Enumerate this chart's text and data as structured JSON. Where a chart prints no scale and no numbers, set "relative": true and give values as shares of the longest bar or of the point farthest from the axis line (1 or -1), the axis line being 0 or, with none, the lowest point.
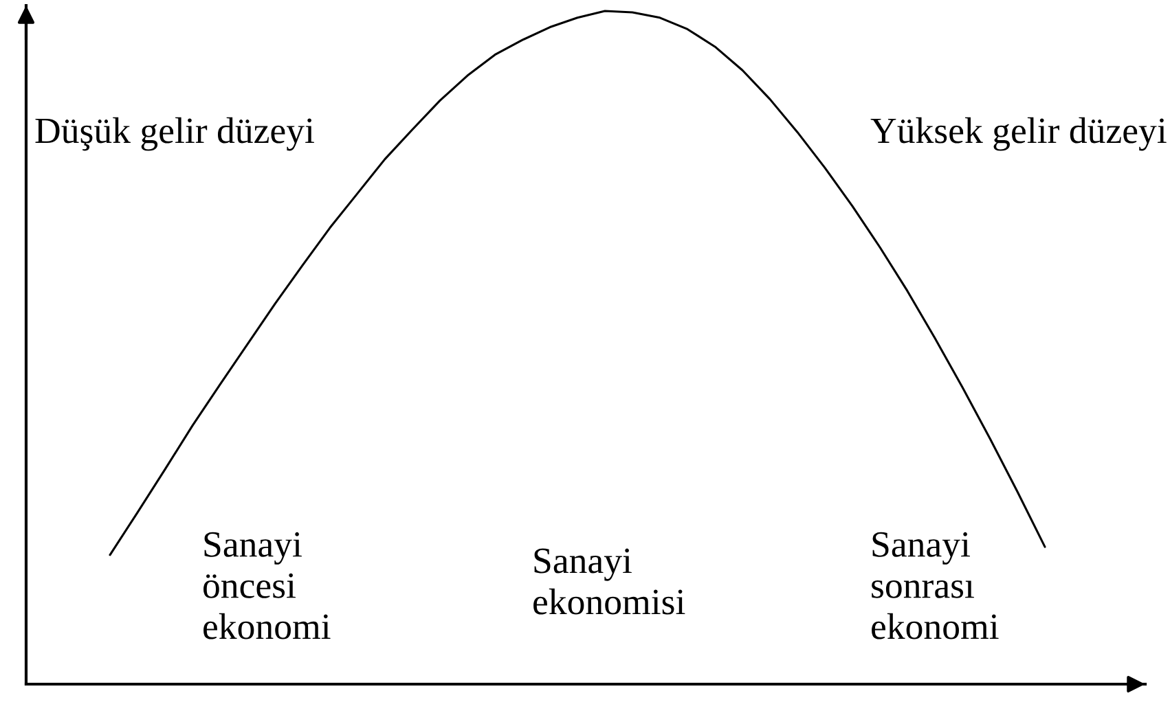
{
  "chart_data": {
    "type": "line",
    "relative": true,
    "categories": [
      null,
      null,
      null,
      null,
      null,
      null,
      null,
      null,
      null,
      null,
      null,
      null,
      null,
      null,
      null,
      null,
      null,
      null,
      null,
      null,
      null,
      null,
      null,
      null,
      null,
      null,
      null,
      null,
      null,
      null,
      null,
      null,
      null,
      null,
      null
    ],
    "series": [
      {
        "color": "#000000",
        "values": [
          0.192,
          0.255,
          0.319,
          0.384,
          0.445,
          0.505,
          0.565,
          0.622,
          0.678,
          0.729,
          0.78,
          0.824,
          0.867,
          0.904,
          0.935,
          0.957,
          0.976,
          0.99,
          1,
          0.998,
          0.99,
          0.973,
          0.947,
          0.912,
          0.869,
          0.82,
          0.767,
          0.71,
          0.649,
          0.584,
          0.514,
          0.441,
          0.365,
          0.286,
          0.204
        ]
      }
    ],
    "annotations": [
      "Düşük gelir düzeyi",
      "Yüksek gelir düzeyi",
      "Sanayi\nöncesi\nekonomi",
      "Sanayi\nekonomisi",
      "Sanayi\nsonrası\nekonomi"
    ]
  }
}
